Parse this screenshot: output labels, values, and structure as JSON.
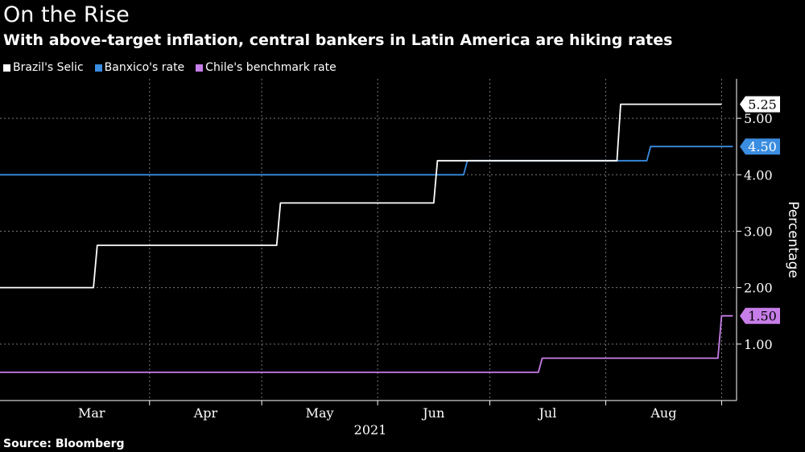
{
  "chart_data": {
    "type": "line",
    "title": "On the Rise",
    "subtitle": "With above-target inflation, central bankers in Latin America are hiking rates",
    "source": "Source: Bloomberg",
    "ylabel": "Percentage",
    "xlabel": "",
    "year_label": "2021",
    "ylim": [
      0,
      5.7
    ],
    "y_ticks": [
      {
        "value": 1,
        "label": "1.00"
      },
      {
        "value": 2,
        "label": "2.00"
      },
      {
        "value": 3,
        "label": "3.00"
      },
      {
        "value": 4,
        "label": "4.00"
      },
      {
        "value": 5,
        "label": "5.00"
      }
    ],
    "x_range": [
      "2021-02-20",
      "2021-09-05"
    ],
    "x_ticks": [
      {
        "date": "2021-03-01",
        "label": "Mar"
      },
      {
        "date": "2021-04-01",
        "label": "Apr"
      },
      {
        "date": "2021-05-01",
        "label": "May"
      },
      {
        "date": "2021-06-01",
        "label": "Jun"
      },
      {
        "date": "2021-07-01",
        "label": "Jul"
      },
      {
        "date": "2021-08-01",
        "label": "Aug"
      }
    ],
    "legend_position": "top-left",
    "grid": true,
    "series": [
      {
        "name": "Brazil's Selic",
        "color": "#ffffff",
        "badge_label": "5.25",
        "badge_fill": "#ffffff",
        "badge_text_color": "#000000",
        "points": [
          {
            "x": "2021-02-20",
            "y": 2.0
          },
          {
            "x": "2021-03-17",
            "y": 2.0
          },
          {
            "x": "2021-03-18",
            "y": 2.75
          },
          {
            "x": "2021-05-05",
            "y": 2.75
          },
          {
            "x": "2021-05-06",
            "y": 3.5
          },
          {
            "x": "2021-06-16",
            "y": 3.5
          },
          {
            "x": "2021-06-17",
            "y": 4.25
          },
          {
            "x": "2021-08-04",
            "y": 4.25
          },
          {
            "x": "2021-08-05",
            "y": 5.25
          },
          {
            "x": "2021-09-01",
            "y": 5.25
          }
        ]
      },
      {
        "name": "Banxico's rate",
        "color": "#3a8de0",
        "badge_label": "4.50",
        "badge_fill": "#3a8de0",
        "badge_text_color": "#ffffff",
        "points": [
          {
            "x": "2021-02-20",
            "y": 4.0
          },
          {
            "x": "2021-06-24",
            "y": 4.0
          },
          {
            "x": "2021-06-25",
            "y": 4.25
          },
          {
            "x": "2021-08-12",
            "y": 4.25
          },
          {
            "x": "2021-08-13",
            "y": 4.5
          },
          {
            "x": "2021-09-04",
            "y": 4.5
          }
        ]
      },
      {
        "name": "Chile's benchmark rate",
        "color": "#c77ee8",
        "badge_label": "1.50",
        "badge_fill": "#c77ee8",
        "badge_text_color": "#000000",
        "points": [
          {
            "x": "2021-02-20",
            "y": 0.5
          },
          {
            "x": "2021-07-14",
            "y": 0.5
          },
          {
            "x": "2021-07-15",
            "y": 0.75
          },
          {
            "x": "2021-08-31",
            "y": 0.75
          },
          {
            "x": "2021-09-01",
            "y": 1.5
          },
          {
            "x": "2021-09-04",
            "y": 1.5
          }
        ]
      }
    ]
  }
}
